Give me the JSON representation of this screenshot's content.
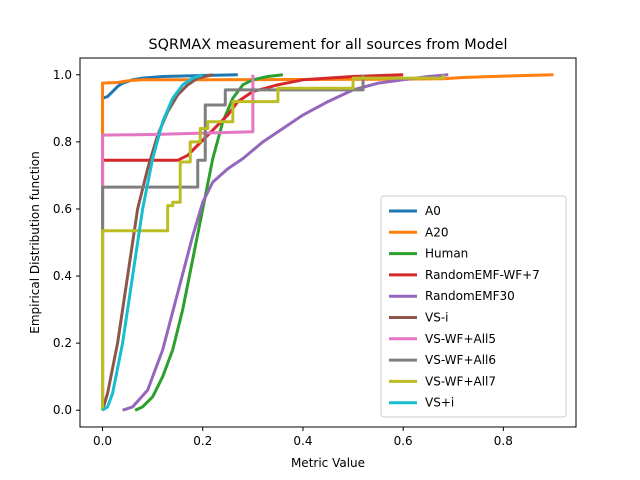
{
  "chart_data": {
    "type": "line",
    "title": "SQRMAX measurement for all sources from Model",
    "xlabel": "Metric Value",
    "ylabel": "Empirical Distribution function",
    "xlim": [
      -0.045,
      0.945
    ],
    "ylim": [
      -0.05,
      1.05
    ],
    "xticks": [
      0.0,
      0.2,
      0.4,
      0.6,
      0.8
    ],
    "xtick_labels": [
      "0.0",
      "0.2",
      "0.4",
      "0.6",
      "0.8"
    ],
    "yticks": [
      0.0,
      0.2,
      0.4,
      0.6,
      0.8,
      1.0
    ],
    "ytick_labels": [
      "0.0",
      "0.2",
      "0.4",
      "0.6",
      "0.8",
      "1.0"
    ],
    "grid": false,
    "legend_position": "lower-right",
    "series": [
      {
        "name": "A0",
        "color": "#1f77b4",
        "points": [
          [
            0.0,
            0.0
          ],
          [
            0.0,
            0.93
          ],
          [
            0.01,
            0.935
          ],
          [
            0.02,
            0.95
          ],
          [
            0.03,
            0.965
          ],
          [
            0.04,
            0.975
          ],
          [
            0.06,
            0.985
          ],
          [
            0.08,
            0.99
          ],
          [
            0.12,
            0.995
          ],
          [
            0.2,
            0.998
          ],
          [
            0.27,
            1.0
          ]
        ]
      },
      {
        "name": "A20",
        "color": "#ff7f0e",
        "points": [
          [
            0.0,
            0.0
          ],
          [
            0.0,
            0.975
          ],
          [
            0.01,
            0.976
          ],
          [
            0.03,
            0.977
          ],
          [
            0.05,
            0.982
          ],
          [
            0.08,
            0.985
          ],
          [
            0.2,
            0.985
          ],
          [
            0.4,
            0.986
          ],
          [
            0.6,
            0.987
          ],
          [
            0.68,
            0.988
          ],
          [
            0.72,
            0.992
          ],
          [
            0.8,
            0.996
          ],
          [
            0.9,
            1.0
          ]
        ]
      },
      {
        "name": "Human",
        "color": "#2ca02c",
        "points": [
          [
            0.065,
            0.0
          ],
          [
            0.08,
            0.01
          ],
          [
            0.1,
            0.04
          ],
          [
            0.12,
            0.1
          ],
          [
            0.14,
            0.18
          ],
          [
            0.16,
            0.3
          ],
          [
            0.18,
            0.45
          ],
          [
            0.2,
            0.6
          ],
          [
            0.22,
            0.75
          ],
          [
            0.24,
            0.86
          ],
          [
            0.26,
            0.93
          ],
          [
            0.28,
            0.97
          ],
          [
            0.3,
            0.985
          ],
          [
            0.33,
            0.995
          ],
          [
            0.36,
            1.0
          ]
        ]
      },
      {
        "name": "RandomEMF-WF+7",
        "color": "#d62728",
        "points": [
          [
            0.0,
            0.0
          ],
          [
            0.0,
            0.745
          ],
          [
            0.15,
            0.745
          ],
          [
            0.17,
            0.76
          ],
          [
            0.19,
            0.79
          ],
          [
            0.21,
            0.82
          ],
          [
            0.23,
            0.85
          ],
          [
            0.25,
            0.88
          ],
          [
            0.27,
            0.92
          ],
          [
            0.3,
            0.95
          ],
          [
            0.35,
            0.97
          ],
          [
            0.4,
            0.985
          ],
          [
            0.45,
            0.99
          ],
          [
            0.5,
            0.995
          ],
          [
            0.6,
            1.0
          ]
        ]
      },
      {
        "name": "RandomEMF30",
        "color": "#9467bd",
        "points": [
          [
            0.04,
            0.0
          ],
          [
            0.06,
            0.01
          ],
          [
            0.09,
            0.06
          ],
          [
            0.12,
            0.18
          ],
          [
            0.15,
            0.35
          ],
          [
            0.18,
            0.52
          ],
          [
            0.2,
            0.62
          ],
          [
            0.22,
            0.68
          ],
          [
            0.25,
            0.72
          ],
          [
            0.28,
            0.75
          ],
          [
            0.32,
            0.8
          ],
          [
            0.36,
            0.84
          ],
          [
            0.4,
            0.88
          ],
          [
            0.45,
            0.92
          ],
          [
            0.5,
            0.955
          ],
          [
            0.55,
            0.975
          ],
          [
            0.6,
            0.985
          ],
          [
            0.65,
            0.995
          ],
          [
            0.69,
            1.0
          ]
        ]
      },
      {
        "name": "VS-i",
        "color": "#8c564b",
        "points": [
          [
            0.0,
            0.0
          ],
          [
            0.01,
            0.05
          ],
          [
            0.03,
            0.2
          ],
          [
            0.05,
            0.4
          ],
          [
            0.07,
            0.6
          ],
          [
            0.09,
            0.72
          ],
          [
            0.11,
            0.82
          ],
          [
            0.13,
            0.89
          ],
          [
            0.15,
            0.94
          ],
          [
            0.17,
            0.97
          ],
          [
            0.19,
            0.99
          ],
          [
            0.22,
            1.0
          ]
        ]
      },
      {
        "name": "VS-WF+All5",
        "color": "#e377c2",
        "points": [
          [
            0.0,
            0.0
          ],
          [
            0.0,
            0.82
          ],
          [
            0.1,
            0.822
          ],
          [
            0.2,
            0.826
          ],
          [
            0.3,
            0.83
          ],
          [
            0.3,
            1.0
          ]
        ]
      },
      {
        "name": "VS-WF+All6",
        "color": "#7f7f7f",
        "points": [
          [
            0.0,
            0.0
          ],
          [
            0.0,
            0.665
          ],
          [
            0.19,
            0.665
          ],
          [
            0.19,
            0.745
          ],
          [
            0.205,
            0.745
          ],
          [
            0.205,
            0.91
          ],
          [
            0.245,
            0.91
          ],
          [
            0.245,
            0.955
          ],
          [
            0.52,
            0.955
          ],
          [
            0.52,
            1.0
          ]
        ]
      },
      {
        "name": "VS-WF+All7",
        "color": "#bcbd22",
        "points": [
          [
            0.0,
            0.0
          ],
          [
            0.0,
            0.535
          ],
          [
            0.13,
            0.535
          ],
          [
            0.13,
            0.61
          ],
          [
            0.14,
            0.61
          ],
          [
            0.14,
            0.62
          ],
          [
            0.155,
            0.62
          ],
          [
            0.155,
            0.74
          ],
          [
            0.175,
            0.74
          ],
          [
            0.175,
            0.8
          ],
          [
            0.195,
            0.8
          ],
          [
            0.195,
            0.84
          ],
          [
            0.21,
            0.84
          ],
          [
            0.21,
            0.86
          ],
          [
            0.26,
            0.86
          ],
          [
            0.26,
            0.92
          ],
          [
            0.35,
            0.92
          ],
          [
            0.35,
            0.96
          ],
          [
            0.5,
            0.96
          ],
          [
            0.5,
            0.99
          ],
          [
            0.68,
            0.99
          ],
          [
            0.68,
            1.0
          ]
        ]
      },
      {
        "name": "VS+i",
        "color": "#17becf",
        "points": [
          [
            0.0,
            0.0
          ],
          [
            0.01,
            0.01
          ],
          [
            0.02,
            0.05
          ],
          [
            0.04,
            0.2
          ],
          [
            0.06,
            0.4
          ],
          [
            0.08,
            0.6
          ],
          [
            0.1,
            0.75
          ],
          [
            0.12,
            0.86
          ],
          [
            0.14,
            0.93
          ],
          [
            0.16,
            0.97
          ],
          [
            0.18,
            0.99
          ],
          [
            0.2,
            1.0
          ]
        ]
      }
    ]
  }
}
